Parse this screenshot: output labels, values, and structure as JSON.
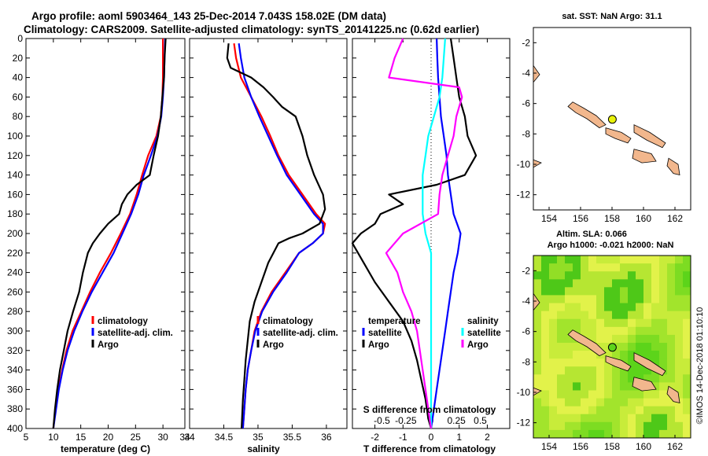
{
  "header": {
    "line1": "Argo profile: aoml 5903464_143 25-Dec-2014 7.043S 158.02E (DM data)",
    "line2": "Climatology: CARS2009. Satellite-adjusted climatology: synTS_20141225.nc (0.62d earlier)"
  },
  "credit": "©IMOS 14-Dec-2018 01:10:10",
  "colors": {
    "climatology": "#ff0000",
    "satellite": "#0000ff",
    "argo": "#000000",
    "sal_sat": "#00ffff",
    "sal_clim": "#ff00ff"
  },
  "chart_data": [
    {
      "id": "temperature",
      "type": "line",
      "xlabel": "temperature (deg C)",
      "xlim": [
        5,
        34
      ],
      "xticks": [
        "5",
        "10",
        "15",
        "20",
        "25",
        "30",
        "34"
      ],
      "ylim": [
        0,
        400
      ],
      "yticks": [
        "0",
        "20",
        "40",
        "60",
        "80",
        "100",
        "120",
        "140",
        "160",
        "180",
        "200",
        "220",
        "240",
        "260",
        "280",
        "300",
        "320",
        "340",
        "360",
        "380",
        "400"
      ],
      "legend": [
        "climatology",
        "satellite-adj. clim.",
        "Argo"
      ],
      "series": [
        {
          "name": "climatology",
          "color": "#ff0000",
          "points": [
            [
              30,
              0
            ],
            [
              30,
              20
            ],
            [
              30,
              40
            ],
            [
              29.9,
              60
            ],
            [
              29.6,
              80
            ],
            [
              28.8,
              100
            ],
            [
              27.3,
              120
            ],
            [
              26.2,
              140
            ],
            [
              25.2,
              160
            ],
            [
              24,
              180
            ],
            [
              22.3,
              200
            ],
            [
              20.5,
              220
            ],
            [
              18.5,
              240
            ],
            [
              16.7,
              260
            ],
            [
              15.1,
              280
            ],
            [
              13.5,
              300
            ],
            [
              12.4,
              320
            ],
            [
              11.6,
              340
            ],
            [
              10.9,
              360
            ],
            [
              10.4,
              380
            ],
            [
              10,
              400
            ]
          ]
        },
        {
          "name": "satellite-adj. clim.",
          "color": "#0000ff",
          "points": [
            [
              30.4,
              0
            ],
            [
              30.3,
              20
            ],
            [
              30.2,
              40
            ],
            [
              30,
              60
            ],
            [
              29.7,
              80
            ],
            [
              29,
              100
            ],
            [
              27.8,
              120
            ],
            [
              26.5,
              140
            ],
            [
              25.5,
              160
            ],
            [
              24.2,
              180
            ],
            [
              22.6,
              200
            ],
            [
              21,
              220
            ],
            [
              19,
              240
            ],
            [
              17,
              260
            ],
            [
              15.3,
              280
            ],
            [
              13.8,
              300
            ],
            [
              12.6,
              320
            ],
            [
              11.7,
              340
            ],
            [
              11,
              360
            ],
            [
              10.5,
              380
            ],
            [
              10,
              400
            ]
          ]
        },
        {
          "name": "Argo",
          "color": "#000000",
          "points": [
            [
              30.5,
              0
            ],
            [
              30.3,
              20
            ],
            [
              30.2,
              40
            ],
            [
              29.9,
              60
            ],
            [
              29.6,
              80
            ],
            [
              29.1,
              100
            ],
            [
              28.3,
              120
            ],
            [
              27.6,
              140
            ],
            [
              25.2,
              150
            ],
            [
              23.5,
              160
            ],
            [
              22.5,
              170
            ],
            [
              22,
              180
            ],
            [
              20,
              190
            ],
            [
              18.5,
              200
            ],
            [
              17.2,
              210
            ],
            [
              16.3,
              220
            ],
            [
              15.4,
              240
            ],
            [
              14.7,
              260
            ],
            [
              13.6,
              280
            ],
            [
              12.6,
              300
            ],
            [
              11.9,
              320
            ],
            [
              11.2,
              340
            ],
            [
              10.7,
              360
            ],
            [
              10.3,
              380
            ],
            [
              10,
              400
            ]
          ]
        }
      ]
    },
    {
      "id": "salinity",
      "type": "line",
      "xlabel": "salinity",
      "xlim": [
        34,
        36.3
      ],
      "xticks": [
        "34",
        "34.5",
        "35",
        "35.5",
        "36"
      ],
      "ylim": [
        0,
        400
      ],
      "legend": [
        "climatology",
        "satellite-adj. clim.",
        "Argo"
      ],
      "series": [
        {
          "name": "climatology",
          "color": "#ff0000",
          "points": [
            [
              34.65,
              5
            ],
            [
              34.68,
              20
            ],
            [
              34.75,
              40
            ],
            [
              34.9,
              60
            ],
            [
              35.05,
              80
            ],
            [
              35.18,
              100
            ],
            [
              35.3,
              120
            ],
            [
              35.45,
              140
            ],
            [
              35.65,
              160
            ],
            [
              35.85,
              180
            ],
            [
              35.98,
              190
            ],
            [
              35.95,
              200
            ],
            [
              35.8,
              210
            ],
            [
              35.6,
              220
            ],
            [
              35.4,
              240
            ],
            [
              35.2,
              260
            ],
            [
              35.05,
              280
            ],
            [
              34.95,
              300
            ],
            [
              34.9,
              320
            ],
            [
              34.85,
              340
            ],
            [
              34.82,
              360
            ],
            [
              34.8,
              380
            ],
            [
              34.78,
              400
            ]
          ]
        },
        {
          "name": "satellite-adj. clim.",
          "color": "#0000ff",
          "points": [
            [
              34.72,
              5
            ],
            [
              34.75,
              20
            ],
            [
              34.8,
              40
            ],
            [
              34.9,
              60
            ],
            [
              35.02,
              80
            ],
            [
              35.15,
              100
            ],
            [
              35.28,
              120
            ],
            [
              35.42,
              140
            ],
            [
              35.62,
              160
            ],
            [
              35.82,
              180
            ],
            [
              35.95,
              190
            ],
            [
              35.95,
              200
            ],
            [
              35.8,
              210
            ],
            [
              35.6,
              220
            ],
            [
              35.42,
              240
            ],
            [
              35.22,
              260
            ],
            [
              35.06,
              280
            ],
            [
              34.96,
              300
            ],
            [
              34.9,
              320
            ],
            [
              34.85,
              340
            ],
            [
              34.82,
              360
            ],
            [
              34.8,
              380
            ],
            [
              34.78,
              400
            ]
          ]
        },
        {
          "name": "Argo",
          "color": "#000000",
          "points": [
            [
              34.57,
              5
            ],
            [
              34.55,
              20
            ],
            [
              34.6,
              30
            ],
            [
              34.9,
              40
            ],
            [
              35.08,
              50
            ],
            [
              35.22,
              60
            ],
            [
              35.35,
              70
            ],
            [
              35.55,
              80
            ],
            [
              35.65,
              100
            ],
            [
              35.72,
              120
            ],
            [
              35.82,
              140
            ],
            [
              35.95,
              160
            ],
            [
              35.98,
              175
            ],
            [
              35.9,
              190
            ],
            [
              35.65,
              200
            ],
            [
              35.45,
              205
            ],
            [
              35.3,
              210
            ],
            [
              35.15,
              230
            ],
            [
              35.05,
              250
            ],
            [
              34.95,
              270
            ],
            [
              34.88,
              290
            ],
            [
              34.85,
              310
            ],
            [
              34.82,
              330
            ],
            [
              34.8,
              350
            ],
            [
              34.78,
              370
            ],
            [
              34.76,
              400
            ]
          ]
        }
      ]
    },
    {
      "id": "difference",
      "type": "line",
      "xlabel": "T difference from climatology",
      "xlabel_top": "S difference from climatology",
      "xlim": [
        -2.8,
        2.8
      ],
      "xticks": [
        "-2",
        "-1",
        "0",
        "1",
        "2"
      ],
      "xticks_top": [
        "-0.5",
        "-0.25",
        "0",
        "0.25",
        "0.5"
      ],
      "ylim": [
        0,
        400
      ],
      "legend_left": {
        "title": "temperature",
        "items": [
          "satellite",
          "Argo"
        ]
      },
      "legend_right": {
        "title": "salinity",
        "items": [
          "satellite",
          "Argo"
        ]
      },
      "series": [
        {
          "name": "temperature satellite",
          "color": "#0000ff",
          "points": [
            [
              0.2,
              0
            ],
            [
              0.22,
              20
            ],
            [
              0.25,
              40
            ],
            [
              0.3,
              60
            ],
            [
              0.35,
              80
            ],
            [
              0.45,
              100
            ],
            [
              0.55,
              120
            ],
            [
              0.6,
              140
            ],
            [
              0.7,
              160
            ],
            [
              0.8,
              180
            ],
            [
              1.05,
              200
            ],
            [
              0.95,
              220
            ],
            [
              0.8,
              240
            ],
            [
              0.7,
              260
            ],
            [
              0.6,
              280
            ],
            [
              0.5,
              300
            ],
            [
              0.4,
              320
            ],
            [
              0.3,
              340
            ],
            [
              0.2,
              360
            ],
            [
              0.1,
              380
            ],
            [
              0,
              400
            ]
          ]
        },
        {
          "name": "temperature Argo",
          "color": "#000000",
          "points": [
            [
              0.7,
              0
            ],
            [
              0.8,
              20
            ],
            [
              0.9,
              40
            ],
            [
              1,
              60
            ],
            [
              1.2,
              80
            ],
            [
              1.3,
              100
            ],
            [
              1.6,
              120
            ],
            [
              1.2,
              140
            ],
            [
              0.2,
              150
            ],
            [
              -1.5,
              160
            ],
            [
              -1,
              170
            ],
            [
              -1.8,
              180
            ],
            [
              -2,
              190
            ],
            [
              -2.5,
              200
            ],
            [
              -2.8,
              210
            ],
            [
              -2.4,
              230
            ],
            [
              -2,
              250
            ],
            [
              -1.5,
              270
            ],
            [
              -1,
              290
            ],
            [
              -0.7,
              310
            ],
            [
              -0.5,
              330
            ],
            [
              -0.35,
              350
            ],
            [
              -0.2,
              370
            ],
            [
              -0.1,
              390
            ],
            [
              0,
              400
            ]
          ]
        },
        {
          "name": "salinity satellite",
          "color": "#00ffff",
          "points": [
            [
              0.5,
              0
            ],
            [
              0.45,
              20
            ],
            [
              0.4,
              40
            ],
            [
              0.3,
              60
            ],
            [
              0.1,
              80
            ],
            [
              -0.1,
              100
            ],
            [
              -0.2,
              120
            ],
            [
              -0.3,
              140
            ],
            [
              -0.3,
              160
            ],
            [
              -0.3,
              180
            ],
            [
              -0.2,
              200
            ],
            [
              0,
              220
            ],
            [
              0,
              240
            ],
            [
              0,
              260
            ],
            [
              0,
              280
            ],
            [
              0,
              300
            ],
            [
              0,
              320
            ],
            [
              0,
              340
            ],
            [
              0,
              360
            ],
            [
              0,
              380
            ],
            [
              0,
              400
            ]
          ]
        },
        {
          "name": "salinity Argo",
          "color": "#ff00ff",
          "points": [
            [
              -1,
              0
            ],
            [
              -1.3,
              20
            ],
            [
              -1.5,
              40
            ],
            [
              1,
              50
            ],
            [
              1.1,
              60
            ],
            [
              0.9,
              80
            ],
            [
              0.8,
              100
            ],
            [
              0.6,
              120
            ],
            [
              0.4,
              140
            ],
            [
              0.3,
              160
            ],
            [
              0.25,
              180
            ],
            [
              -1,
              200
            ],
            [
              -1.6,
              220
            ],
            [
              -1.2,
              240
            ],
            [
              -1,
              260
            ],
            [
              -0.7,
              280
            ],
            [
              -0.5,
              300
            ],
            [
              -0.4,
              320
            ],
            [
              -0.3,
              340
            ],
            [
              -0.2,
              360
            ],
            [
              -0.1,
              380
            ],
            [
              0,
              400
            ]
          ]
        }
      ]
    },
    {
      "id": "map-sst",
      "type": "heatmap",
      "title": "sat. SST: NaN Argo: 31.1",
      "xticks": [
        "154",
        "156",
        "158",
        "160",
        "162"
      ],
      "yticks": [
        "-2",
        "-4",
        "-6",
        "-8",
        "-10",
        "-12"
      ],
      "xlim": [
        153,
        163
      ],
      "ylim": [
        -13,
        -1
      ],
      "marker": {
        "lon": 158.02,
        "lat": -7.04
      }
    },
    {
      "id": "map-sla",
      "type": "heatmap",
      "title": "Altim. SLA: 0.066",
      "subtitle": "Argo h1000: -0.021 h2000: NaN",
      "xticks": [
        "154",
        "156",
        "158",
        "160",
        "162"
      ],
      "yticks": [
        "-2",
        "-4",
        "-6",
        "-8",
        "-10",
        "-12"
      ],
      "xlim": [
        153,
        163
      ],
      "ylim": [
        -13,
        -1
      ],
      "marker": {
        "lon": 158.02,
        "lat": -7.04
      }
    }
  ]
}
